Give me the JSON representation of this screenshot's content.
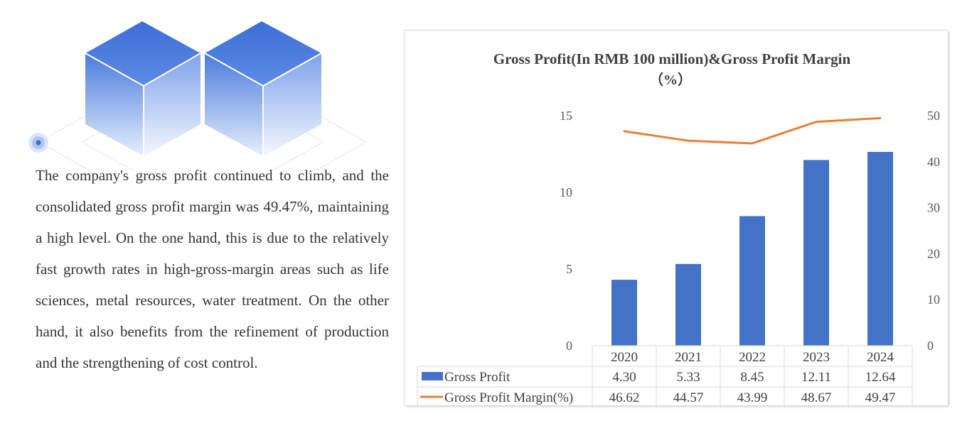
{
  "paragraph": "The company's gross profit continued to climb, and the consolidated gross profit margin was 49.47%, maintaining a high level. On the one hand, this is due to the relatively fast growth rates in high-gross-margin areas such as life sciences, metal resources, water treatment. On the other hand, it also benefits from the refinement of production and the strengthening of cost control.",
  "colors": {
    "bar": "#4472C4",
    "line": "#ED7D31",
    "cube": "#4A78D6"
  },
  "chart_data": {
    "type": "bar",
    "title_line1": "Gross Profit(In RMB 100 million)&Gross Profit Margin",
    "title_line2": "（%）",
    "categories": [
      "2020",
      "2021",
      "2022",
      "2023",
      "2024"
    ],
    "series": [
      {
        "name": "Gross Profit",
        "kind": "bar",
        "axis": "left",
        "values": [
          4.3,
          5.33,
          8.45,
          12.11,
          12.64
        ],
        "labels": [
          "4.30",
          "5.33",
          "8.45",
          "12.11",
          "12.64"
        ]
      },
      {
        "name": "Gross Profit Margin(%)",
        "kind": "line",
        "axis": "right",
        "values": [
          46.62,
          44.57,
          43.99,
          48.67,
          49.47
        ],
        "labels": [
          "46.62",
          "44.57",
          "43.99",
          "48.67",
          "49.47"
        ]
      }
    ],
    "y_left": {
      "min": 0,
      "max": 15,
      "ticks": [
        0,
        5,
        10,
        15
      ],
      "tick_labels": [
        "0",
        "5",
        "10",
        "15"
      ]
    },
    "y_right": {
      "min": 0,
      "max": 50,
      "ticks": [
        0,
        10,
        20,
        30,
        40,
        50
      ],
      "tick_labels": [
        "0",
        "10",
        "20",
        "30",
        "40",
        "50"
      ]
    },
    "legend": "data-table"
  }
}
